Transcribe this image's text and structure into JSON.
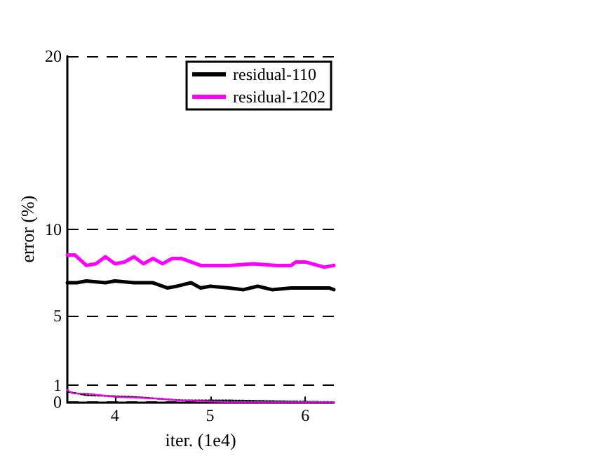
{
  "chart_data": {
    "type": "line",
    "xlabel": "iter. (1e4)",
    "ylabel": "error (%)",
    "xlim": [
      3.5,
      6.3
    ],
    "xticks": [
      4,
      5,
      6
    ],
    "ylim": [
      0,
      20
    ],
    "yticks": [
      0,
      1,
      5,
      10,
      20
    ],
    "grid": "y",
    "legend": "top right",
    "marker": "none",
    "series": [
      {
        "name": "residual-110",
        "color": "#000000",
        "line_style": "solid",
        "x": [
          3.5,
          3.6,
          3.7,
          3.9,
          4.0,
          4.2,
          4.4,
          4.55,
          4.65,
          4.8,
          4.9,
          5.0,
          5.2,
          5.35,
          5.5,
          5.65,
          5.85,
          6.05,
          6.25,
          6.3
        ],
        "values": [
          6.9,
          6.9,
          7.0,
          6.9,
          7.0,
          6.9,
          6.9,
          6.6,
          6.7,
          6.9,
          6.6,
          6.7,
          6.6,
          6.5,
          6.7,
          6.5,
          6.6,
          6.6,
          6.6,
          6.5
        ]
      },
      {
        "name": "residual-1202",
        "color": "#ff00ff",
        "line_style": "solid",
        "x": [
          3.5,
          3.58,
          3.7,
          3.8,
          3.9,
          4.0,
          4.1,
          4.2,
          4.3,
          4.4,
          4.5,
          4.6,
          4.7,
          4.8,
          4.9,
          5.2,
          5.45,
          5.7,
          5.85,
          5.9,
          6.0,
          6.2,
          6.3
        ],
        "values": [
          8.5,
          8.5,
          7.9,
          8.0,
          8.4,
          8.0,
          8.1,
          8.4,
          8.0,
          8.3,
          8.0,
          8.3,
          8.3,
          8.1,
          7.9,
          7.9,
          8.0,
          7.9,
          7.9,
          8.1,
          8.1,
          7.8,
          7.9
        ]
      },
      {
        "color": "#000000",
        "line_style": "dotted",
        "x": [
          3.5,
          3.7,
          4.2,
          4.7,
          5.2,
          6.3
        ],
        "values": [
          0.6,
          0.4,
          0.3,
          0.1,
          0.1,
          0.0
        ]
      },
      {
        "color": "#ff00ff",
        "line_style": "dotted",
        "x": [
          3.5,
          3.56,
          3.7,
          4.0,
          4.45,
          4.7,
          5.2,
          6.3
        ],
        "values": [
          0.7,
          0.5,
          0.5,
          0.3,
          0.2,
          0.1,
          0.0,
          0.0
        ]
      }
    ]
  }
}
